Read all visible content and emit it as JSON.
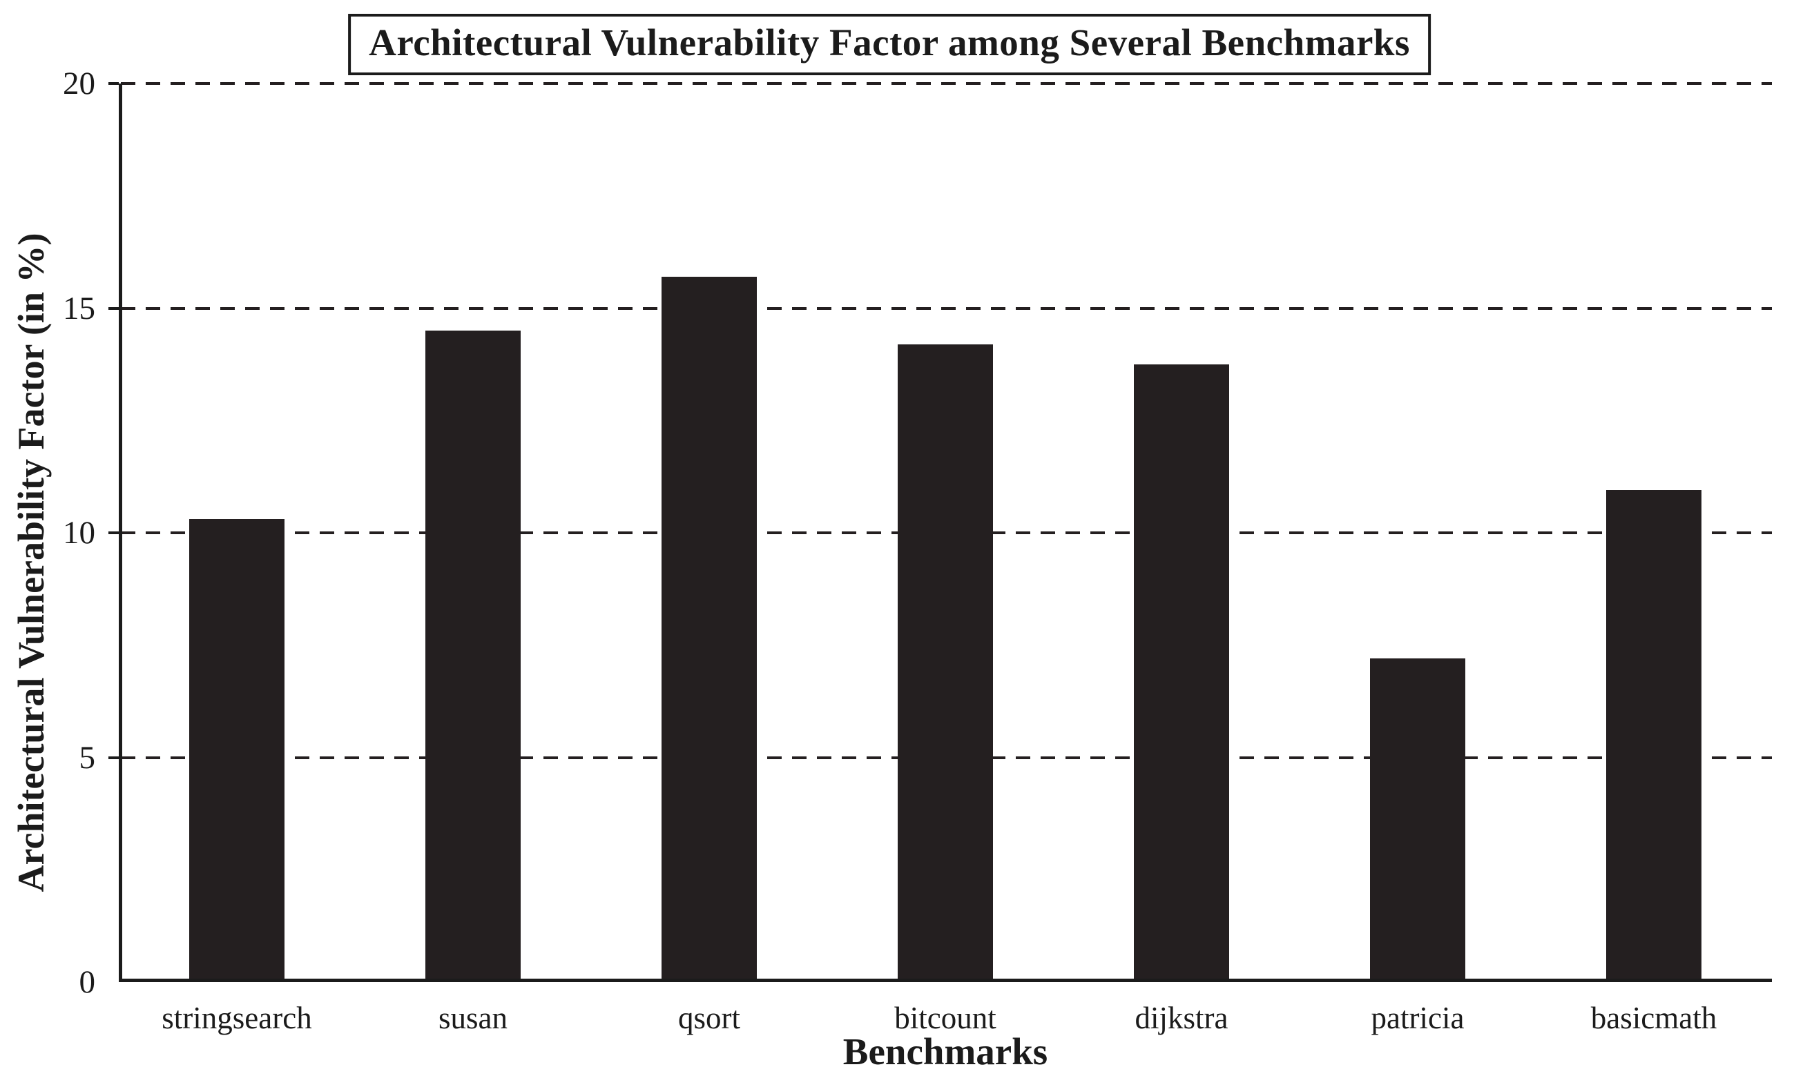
{
  "chart_data": {
    "type": "bar",
    "title": "Architectural Vulnerability Factor among Several Benchmarks",
    "xlabel": "Benchmarks",
    "ylabel": "Architectural Vulnerability Factor (in %)",
    "categories": [
      "stringsearch",
      "susan",
      "qsort",
      "bitcount",
      "dijkstra",
      "patricia",
      "basicmath"
    ],
    "values": [
      10.3,
      14.5,
      15.7,
      14.2,
      13.75,
      7.2,
      10.95
    ],
    "ylim": [
      0,
      20
    ],
    "yticks": [
      0,
      5,
      10,
      15,
      20
    ],
    "gridlines": [
      5,
      10,
      15,
      20
    ],
    "grid_style": "dashed-horizontal",
    "bar_color": "#241f20",
    "axis_color": "#1b1b1b",
    "title_boxed": true,
    "legend_position": "none"
  }
}
